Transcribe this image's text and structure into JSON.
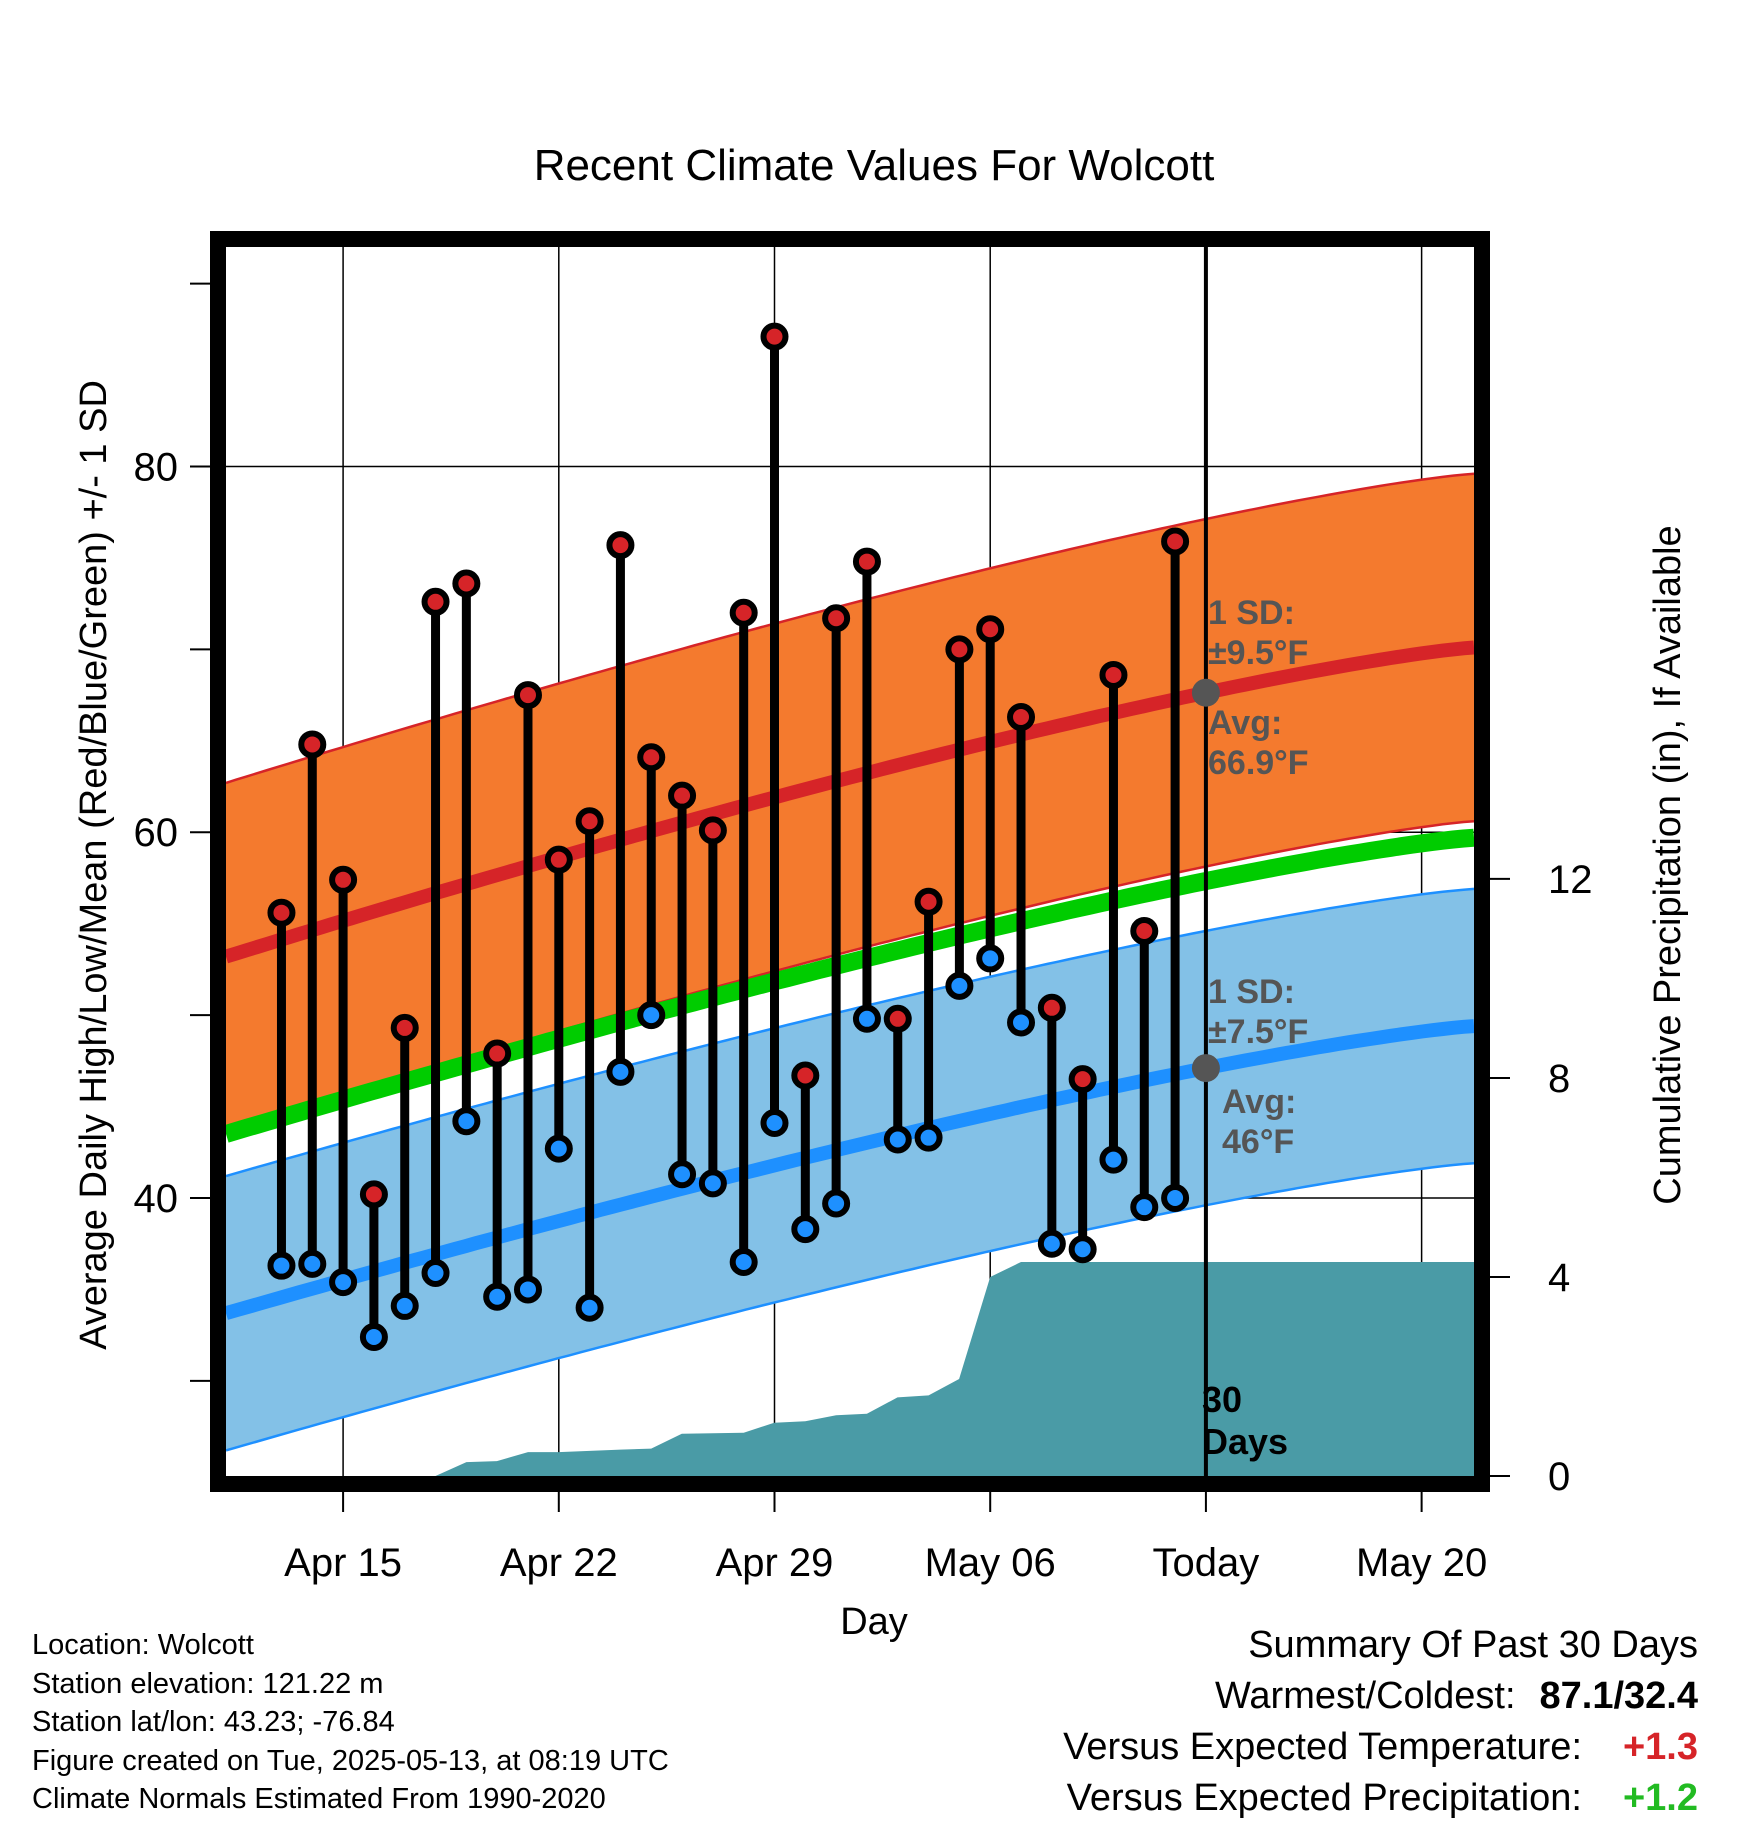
{
  "chart_data": {
    "type": "line",
    "title": "Recent Climate Values For Wolcott",
    "xlabel": "Day",
    "ylabel_left": "Average Daily High/Low/Mean (Red/Blue/Green) +/- 1 SD",
    "ylabel_right": "Cumulative Precipitation (in), If Available",
    "x_tick_labels": [
      "Apr 15",
      "Apr 22",
      "Apr 29",
      "May 06",
      "Today",
      "May 20"
    ],
    "x_tick_days": [
      2,
      9,
      16,
      23,
      30,
      37
    ],
    "x_range_days": [
      -1.8,
      38.7
    ],
    "y_left_ticks": [
      40,
      60,
      80
    ],
    "y_left_range": [
      24.8,
      92
    ],
    "y_right_ticks": [
      0,
      4,
      8,
      12
    ],
    "y_right_range": [
      0,
      24.7
    ],
    "grid": true,
    "today_day": 30,
    "today_label": [
      "30",
      "Days"
    ],
    "normals": {
      "high_avg_start": 53.2,
      "high_avg_end": 70.1,
      "low_avg_start": 33.7,
      "low_avg_end": 49.4,
      "mean_avg_start": 43.5,
      "mean_avg_end": 59.7,
      "high_sd": 9.5,
      "low_sd": 7.5,
      "band_curvature": 1.25
    },
    "annotations": {
      "high_sd_label": [
        "1 SD:",
        "±9.5°F"
      ],
      "high_avg_label": [
        "Avg:",
        "66.9°F"
      ],
      "low_sd_label": [
        "1 SD:",
        "±7.5°F"
      ],
      "low_avg_label": [
        "Avg:",
        "46°F"
      ]
    },
    "series": [
      {
        "name": "High",
        "days": [
          0,
          1,
          2,
          3,
          4,
          5,
          6,
          7,
          8,
          9,
          10,
          11,
          12,
          13,
          14,
          15,
          16,
          17,
          18,
          19,
          20,
          21,
          22,
          23,
          24,
          25,
          26,
          27,
          28,
          29
        ],
        "values": [
          55.6,
          64.8,
          57.4,
          40.2,
          49.3,
          72.6,
          73.6,
          47.9,
          67.5,
          58.5,
          60.6,
          75.7,
          64.1,
          62.0,
          60.1,
          72.0,
          87.1,
          46.7,
          71.7,
          74.8,
          49.8,
          56.2,
          70.0,
          71.1,
          66.3,
          50.4,
          46.5,
          68.6,
          54.6,
          75.9
        ]
      },
      {
        "name": "Low",
        "days": [
          0,
          1,
          2,
          3,
          4,
          5,
          6,
          7,
          8,
          9,
          10,
          11,
          12,
          13,
          14,
          15,
          16,
          17,
          18,
          19,
          20,
          21,
          22,
          23,
          24,
          25,
          26,
          27,
          28,
          29
        ],
        "values": [
          36.3,
          36.4,
          35.4,
          32.4,
          34.1,
          35.9,
          44.2,
          34.6,
          35.0,
          42.7,
          34.0,
          46.9,
          50.0,
          41.3,
          40.8,
          36.5,
          44.1,
          38.3,
          39.7,
          49.8,
          43.2,
          43.3,
          51.6,
          53.1,
          49.6,
          37.5,
          37.2,
          42.1,
          39.5,
          40.0
        ]
      },
      {
        "name": "Cumulative Precipitation",
        "days": [
          0,
          5,
          6,
          6.99,
          8,
          9,
          11,
          12,
          12.99,
          15,
          15.99,
          17,
          18,
          19,
          19.99,
          21,
          21.99,
          23,
          24,
          38.7
        ],
        "values": [
          0,
          0,
          0.28,
          0.3,
          0.48,
          0.48,
          0.53,
          0.55,
          0.85,
          0.87,
          1.07,
          1.1,
          1.22,
          1.25,
          1.58,
          1.62,
          1.95,
          4.0,
          4.3,
          4.3
        ]
      }
    ]
  },
  "footer": {
    "location": "Location: Wolcott",
    "elevation": "Station elevation: 121.22 m",
    "latlon": "Station lat/lon: 43.23; -76.84",
    "created": "Figure created on Tue, 2025-05-13, at 08:19 UTC",
    "normals": "Climate Normals Estimated From 1990-2020"
  },
  "summary": {
    "title": "Summary Of Past 30 Days",
    "warm_cold_label": "Warmest/Coldest:",
    "warm_cold_value": "87.1/32.4",
    "temp_label": "Versus Expected Temperature:",
    "temp_value": "+1.3",
    "precip_label": "Versus Expected Precipitation:",
    "precip_value": "+1.2"
  },
  "colors": {
    "high_band": "#F47A2E",
    "high_line": "#D62428",
    "low_band": "#83C1E7",
    "low_line": "#1E90FF",
    "mean_line": "#00CC00",
    "precip": "#4A9BA6",
    "high_dot": "#D62428",
    "low_dot": "#1E90FF",
    "annotation": "#555555",
    "warm_value": "#D62428",
    "wet_value": "#22BB22"
  }
}
